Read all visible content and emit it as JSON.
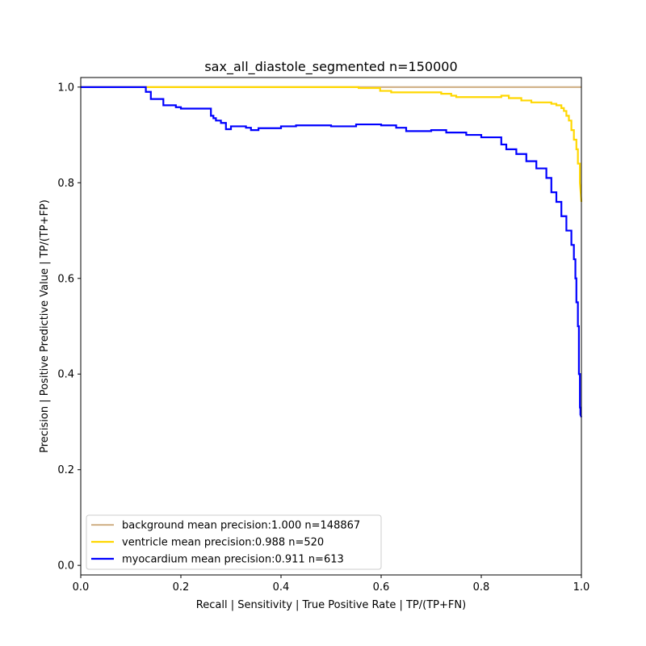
{
  "chart_data": {
    "type": "line",
    "title": "sax_all_diastole_segmented n=150000",
    "xlabel": "Recall | Sensitivity | True Positive Rate | TP/(TP+FN)",
    "ylabel": "Precision | Positive Predictive Value | TP/(TP+FP)",
    "xlim": [
      0.0,
      1.0
    ],
    "ylim": [
      -0.02,
      1.02
    ],
    "x_ticks": [
      "0.0",
      "0.2",
      "0.4",
      "0.6",
      "0.8",
      "1.0"
    ],
    "y_ticks": [
      "0.0",
      "0.2",
      "0.4",
      "0.6",
      "0.8",
      "1.0"
    ],
    "grid": false,
    "legend_position": "lower-left",
    "series": [
      {
        "name": "background mean precision:1.000 n=148867",
        "color": "#d2b48c",
        "x": [
          0.0,
          1.0
        ],
        "y": [
          1.0,
          1.0
        ]
      },
      {
        "name": "ventricle mean precision:0.988 n=520",
        "color": "#ffd700",
        "x": [
          0.0,
          0.555,
          0.555,
          0.598,
          0.598,
          0.62,
          0.62,
          0.72,
          0.72,
          0.74,
          0.74,
          0.75,
          0.75,
          0.84,
          0.84,
          0.855,
          0.855,
          0.88,
          0.88,
          0.9,
          0.9,
          0.94,
          0.94,
          0.95,
          0.95,
          0.96,
          0.96,
          0.965,
          0.965,
          0.97,
          0.97,
          0.975,
          0.975,
          0.98,
          0.98,
          0.985,
          0.985,
          0.99,
          0.99,
          0.993,
          0.993,
          0.997,
          0.997,
          1.0
        ],
        "y": [
          1.0,
          1.0,
          0.998,
          0.998,
          0.992,
          0.992,
          0.989,
          0.989,
          0.986,
          0.986,
          0.982,
          0.982,
          0.979,
          0.979,
          0.982,
          0.982,
          0.977,
          0.977,
          0.972,
          0.972,
          0.968,
          0.968,
          0.965,
          0.965,
          0.962,
          0.962,
          0.956,
          0.956,
          0.95,
          0.95,
          0.94,
          0.94,
          0.93,
          0.93,
          0.91,
          0.91,
          0.89,
          0.89,
          0.87,
          0.87,
          0.84,
          0.84,
          0.8,
          0.76
        ]
      },
      {
        "name": "myocardium mean precision:0.911 n=613",
        "color": "#0000ff",
        "x": [
          0.0,
          0.13,
          0.13,
          0.14,
          0.14,
          0.165,
          0.165,
          0.19,
          0.19,
          0.2,
          0.2,
          0.25,
          0.25,
          0.26,
          0.26,
          0.265,
          0.265,
          0.27,
          0.27,
          0.28,
          0.28,
          0.29,
          0.29,
          0.3,
          0.3,
          0.33,
          0.33,
          0.34,
          0.34,
          0.355,
          0.355,
          0.4,
          0.4,
          0.43,
          0.43,
          0.5,
          0.5,
          0.55,
          0.55,
          0.6,
          0.6,
          0.63,
          0.63,
          0.65,
          0.65,
          0.7,
          0.7,
          0.73,
          0.73,
          0.77,
          0.77,
          0.8,
          0.8,
          0.84,
          0.84,
          0.85,
          0.85,
          0.87,
          0.87,
          0.89,
          0.89,
          0.91,
          0.91,
          0.93,
          0.93,
          0.94,
          0.94,
          0.95,
          0.95,
          0.96,
          0.96,
          0.97,
          0.97,
          0.98,
          0.98,
          0.985,
          0.985,
          0.988,
          0.988,
          0.99,
          0.99,
          0.993,
          0.993,
          0.995,
          0.995,
          0.997,
          0.997,
          0.998,
          0.998,
          1.0
        ],
        "y": [
          1.0,
          1.0,
          0.99,
          0.99,
          0.975,
          0.975,
          0.962,
          0.962,
          0.958,
          0.958,
          0.955,
          0.955,
          0.955,
          0.955,
          0.94,
          0.94,
          0.935,
          0.935,
          0.93,
          0.93,
          0.925,
          0.925,
          0.912,
          0.912,
          0.918,
          0.918,
          0.915,
          0.915,
          0.91,
          0.91,
          0.914,
          0.914,
          0.918,
          0.918,
          0.92,
          0.92,
          0.918,
          0.918,
          0.922,
          0.922,
          0.92,
          0.92,
          0.915,
          0.915,
          0.908,
          0.908,
          0.91,
          0.91,
          0.905,
          0.905,
          0.9,
          0.9,
          0.895,
          0.895,
          0.88,
          0.88,
          0.87,
          0.87,
          0.86,
          0.86,
          0.845,
          0.845,
          0.83,
          0.83,
          0.81,
          0.81,
          0.78,
          0.78,
          0.76,
          0.76,
          0.73,
          0.73,
          0.7,
          0.7,
          0.67,
          0.67,
          0.64,
          0.64,
          0.6,
          0.6,
          0.55,
          0.55,
          0.5,
          0.5,
          0.4,
          0.4,
          0.33,
          0.33,
          0.315,
          0.31
        ]
      }
    ]
  }
}
